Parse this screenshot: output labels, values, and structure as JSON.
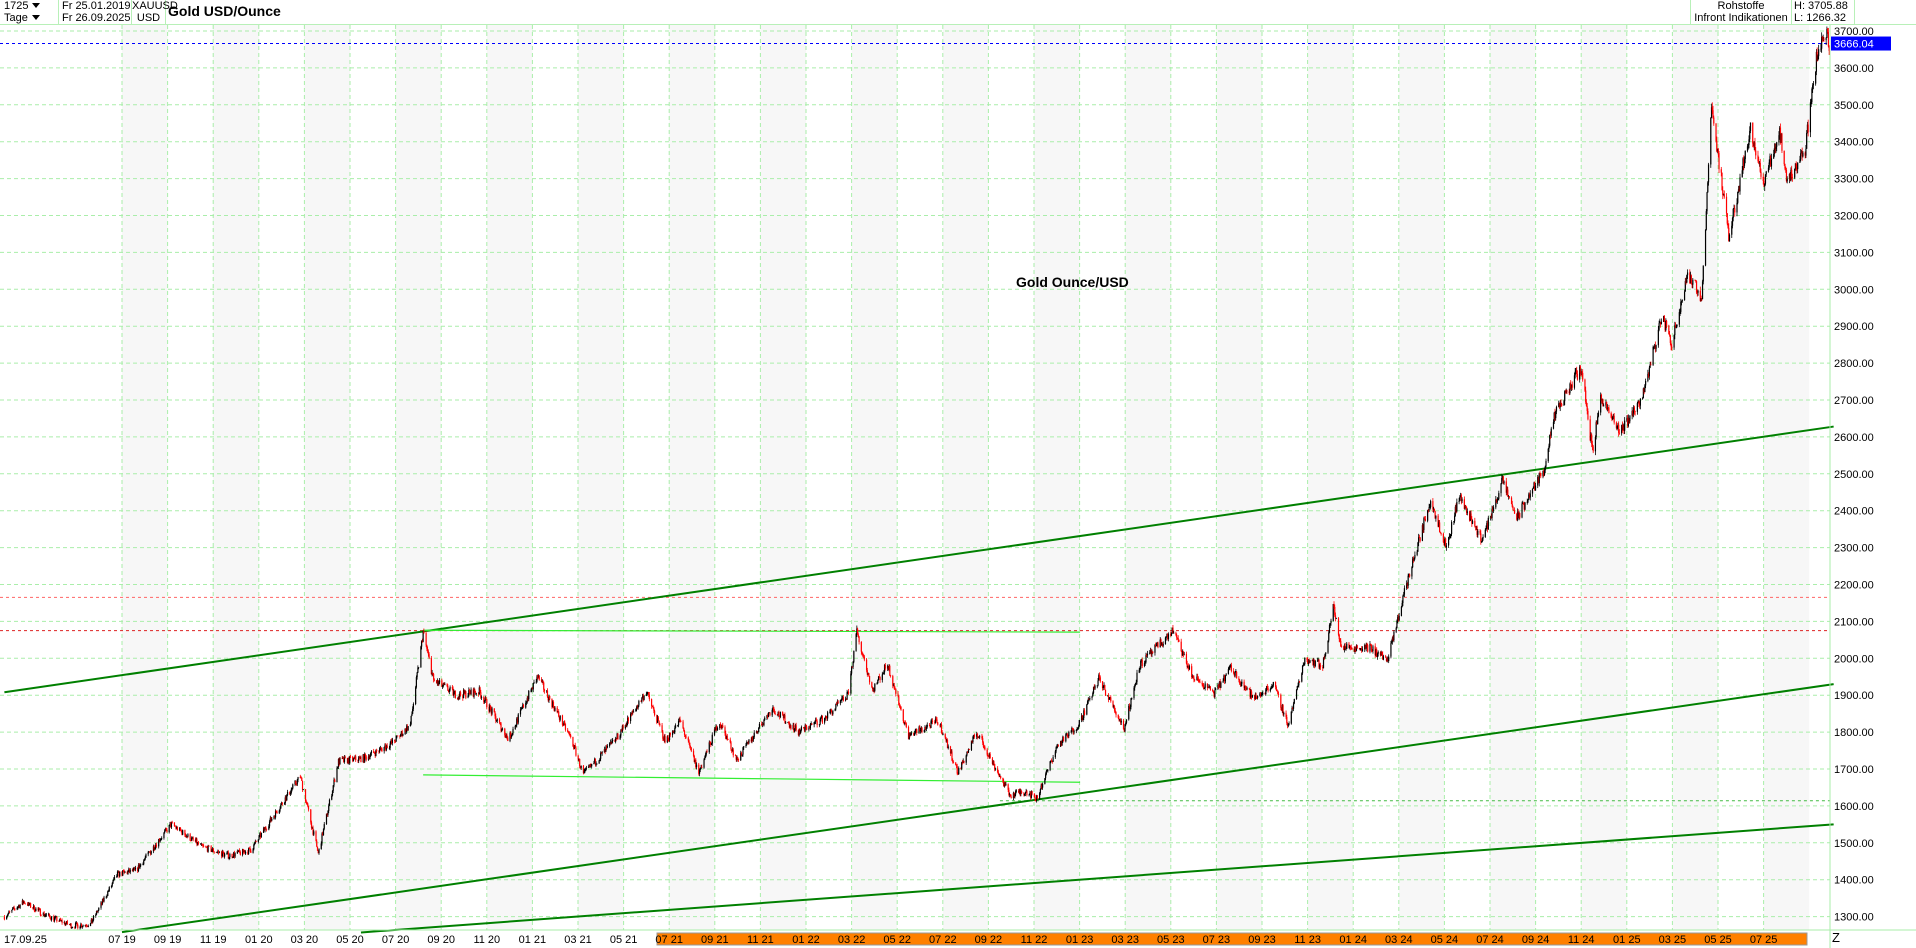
{
  "header": {
    "bars": "1725",
    "period": "Tage",
    "from_date": "Fr 25.01.2019",
    "to_date": "Fr 26.09.2025",
    "symbol": "XAUUSD",
    "currency": "USD",
    "title": "Gold USD/Ounce",
    "category": "Rohstoffe",
    "source": "Infront Indikationen",
    "high": "H: 3705.88",
    "low": "L: 1266.32"
  },
  "colors": {
    "up": "#000000",
    "down": "#ff0000",
    "trendline": "#008000",
    "range_line": "#33ee33",
    "grid": "#aaeeaa",
    "last_price_bg": "#0000ff",
    "band": "#ff8000"
  },
  "chart_data": {
    "type": "candlestick",
    "title": "Gold USD/Ounce",
    "annotation": "Gold Ounce/USD",
    "ylim": [
      1250,
      3720
    ],
    "y_ticks": [
      "1300.00",
      "1400.00",
      "1500.00",
      "1600.00",
      "1700.00",
      "1800.00",
      "1900.00",
      "2000.00",
      "2100.00",
      "2200.00",
      "2300.00",
      "2400.00",
      "2500.00",
      "2600.00",
      "2700.00",
      "2800.00",
      "2900.00",
      "3000.00",
      "3100.00",
      "3200.00",
      "3300.00",
      "3400.00",
      "3500.00",
      "3600.00",
      "3700.00"
    ],
    "x_start_label": "17.09.25",
    "x_ticks": [
      "07 19",
      "09 19",
      "11 19",
      "01 20",
      "03 20",
      "05 20",
      "07 20",
      "09 20",
      "11 20",
      "01 21",
      "03 21",
      "05 21",
      "07 21",
      "09 21",
      "11 21",
      "01 22",
      "03 22",
      "05 22",
      "07 22",
      "09 22",
      "11 22",
      "01 23",
      "03 23",
      "05 23",
      "07 23",
      "09 23",
      "11 23",
      "01 24",
      "03 24",
      "05 24",
      "07 24",
      "09 24",
      "11 24",
      "01 25",
      "03 25",
      "05 25",
      "07 25"
    ],
    "x_end_label": "Z",
    "last_price": "3666.04",
    "price_path": [
      [
        "2019-01-25",
        1300
      ],
      [
        "2019-02-20",
        1340
      ],
      [
        "2019-03-20",
        1305
      ],
      [
        "2019-04-25",
        1275
      ],
      [
        "2019-05-20",
        1280
      ],
      [
        "2019-06-25",
        1415
      ],
      [
        "2019-07-20",
        1425
      ],
      [
        "2019-08-20",
        1510
      ],
      [
        "2019-09-05",
        1550
      ],
      [
        "2019-10-15",
        1490
      ],
      [
        "2019-11-20",
        1465
      ],
      [
        "2019-12-20",
        1480
      ],
      [
        "2020-01-15",
        1560
      ],
      [
        "2020-02-24",
        1680
      ],
      [
        "2020-03-19",
        1470
      ],
      [
        "2020-04-15",
        1720
      ],
      [
        "2020-05-20",
        1730
      ],
      [
        "2020-06-25",
        1770
      ],
      [
        "2020-07-20",
        1820
      ],
      [
        "2020-08-06",
        2070
      ],
      [
        "2020-08-20",
        1940
      ],
      [
        "2020-09-20",
        1900
      ],
      [
        "2020-10-20",
        1910
      ],
      [
        "2020-11-28",
        1780
      ],
      [
        "2020-12-20",
        1880
      ],
      [
        "2021-01-06",
        1950
      ],
      [
        "2021-02-20",
        1780
      ],
      [
        "2021-03-08",
        1685
      ],
      [
        "2021-04-20",
        1780
      ],
      [
        "2021-05-31",
        1910
      ],
      [
        "2021-06-25",
        1775
      ],
      [
        "2021-07-15",
        1830
      ],
      [
        "2021-08-09",
        1690
      ],
      [
        "2021-09-05",
        1830
      ],
      [
        "2021-09-29",
        1725
      ],
      [
        "2021-11-15",
        1865
      ],
      [
        "2021-12-20",
        1800
      ],
      [
        "2022-01-25",
        1840
      ],
      [
        "2022-02-24",
        1900
      ],
      [
        "2022-03-08",
        2070
      ],
      [
        "2022-03-29",
        1915
      ],
      [
        "2022-04-18",
        1985
      ],
      [
        "2022-05-16",
        1790
      ],
      [
        "2022-06-25",
        1830
      ],
      [
        "2022-07-21",
        1690
      ],
      [
        "2022-08-15",
        1800
      ],
      [
        "2022-09-28",
        1630
      ],
      [
        "2022-10-20",
        1640
      ],
      [
        "2022-11-03",
        1620
      ],
      [
        "2022-11-30",
        1760
      ],
      [
        "2022-12-30",
        1825
      ],
      [
        "2023-01-25",
        1945
      ],
      [
        "2023-02-28",
        1810
      ],
      [
        "2023-03-20",
        1980
      ],
      [
        "2023-05-04",
        2075
      ],
      [
        "2023-05-30",
        1950
      ],
      [
        "2023-06-29",
        1905
      ],
      [
        "2023-07-20",
        1975
      ],
      [
        "2023-08-20",
        1890
      ],
      [
        "2023-09-15",
        1930
      ],
      [
        "2023-10-05",
        1820
      ],
      [
        "2023-10-27",
        2000
      ],
      [
        "2023-11-20",
        1980
      ],
      [
        "2023-12-04",
        2140
      ],
      [
        "2023-12-15",
        2030
      ],
      [
        "2024-01-20",
        2030
      ],
      [
        "2024-02-15",
        1995
      ],
      [
        "2024-03-08",
        2180
      ],
      [
        "2024-04-12",
        2430
      ],
      [
        "2024-05-03",
        2300
      ],
      [
        "2024-05-20",
        2440
      ],
      [
        "2024-06-20",
        2320
      ],
      [
        "2024-07-17",
        2480
      ],
      [
        "2024-08-05",
        2380
      ],
      [
        "2024-09-10",
        2510
      ],
      [
        "2024-09-25",
        2660
      ],
      [
        "2024-10-30",
        2790
      ],
      [
        "2024-11-14",
        2560
      ],
      [
        "2024-11-25",
        2710
      ],
      [
        "2024-12-20",
        2610
      ],
      [
        "2025-01-20",
        2710
      ],
      [
        "2025-02-15",
        2930
      ],
      [
        "2025-02-28",
        2850
      ],
      [
        "2025-03-20",
        3040
      ],
      [
        "2025-04-09",
        2980
      ],
      [
        "2025-04-22",
        3500
      ],
      [
        "2025-05-15",
        3140
      ],
      [
        "2025-06-13",
        3440
      ],
      [
        "2025-06-30",
        3280
      ],
      [
        "2025-07-22",
        3430
      ],
      [
        "2025-08-01",
        3290
      ],
      [
        "2025-08-25",
        3380
      ],
      [
        "2025-09-10",
        3640
      ],
      [
        "2025-09-23",
        3705
      ],
      [
        "2025-09-26",
        3666
      ]
    ],
    "trendlines": [
      {
        "from": [
          "2019-01-25",
          1908
        ],
        "to": [
          "2025-10-02",
          2628
        ]
      },
      {
        "from": [
          "2019-07-01",
          1258
        ],
        "to": [
          "2025-10-02",
          1930
        ]
      },
      {
        "from": [
          "2020-05-15",
          1257
        ],
        "to": [
          "2025-10-02",
          1550
        ]
      }
    ],
    "range_lines": [
      {
        "from": [
          "2020-08-06",
          2076
        ],
        "to": [
          "2022-12-31",
          2071
        ]
      },
      {
        "from": [
          "2020-08-06",
          1684
        ],
        "to": [
          "2022-12-31",
          1664
        ]
      }
    ],
    "horizontal_levels": [
      {
        "price": 2165,
        "color": "#ff6666",
        "style": "dotted"
      },
      {
        "price": 2075,
        "color": "#dd2222",
        "style": "dotted"
      },
      {
        "price": 1614,
        "color": "#44bb44",
        "style": "dotted",
        "from": "2022-09-15"
      },
      {
        "price": 3666.04,
        "color": "#0000ff",
        "style": "dotted"
      }
    ]
  }
}
